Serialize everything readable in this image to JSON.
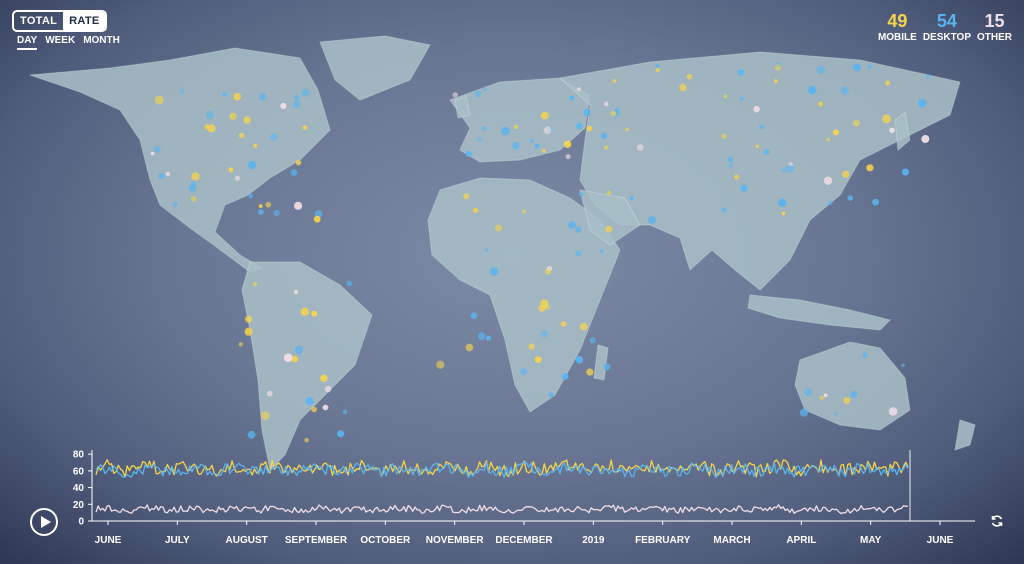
{
  "mode_toggle": {
    "total": "TOTAL",
    "rate": "RATE",
    "active": "rate"
  },
  "range_tabs": [
    "DAY",
    "WEEK",
    "MONTH"
  ],
  "range_active": "DAY",
  "stats": [
    {
      "value": "49",
      "label": "MOBILE",
      "color": "#f6d44b"
    },
    {
      "value": "54",
      "label": "DESKTOP",
      "color": "#5ab4f0"
    },
    {
      "value": "15",
      "label": "OTHER",
      "color": "#f1dfe7"
    }
  ],
  "icons": {
    "play": "play-icon",
    "refresh": "refresh-icon"
  },
  "colors": {
    "mobile": "#f6d44b",
    "desktop": "#5ab4f0",
    "other": "#f1dfe7",
    "land": "#a9bfc7",
    "ocean": "#6a7794"
  },
  "chart_data": {
    "type": "line",
    "x_tick_labels": [
      "JUNE",
      "JULY",
      "AUGUST",
      "SEPTEMBER",
      "OCTOBER",
      "NOVEMBER",
      "DECEMBER",
      "2019",
      "FEBRUARY",
      "MARCH",
      "APRIL",
      "MAY",
      "JUNE"
    ],
    "y_ticks": [
      0,
      20,
      40,
      60,
      80
    ],
    "ylim": [
      0,
      85
    ],
    "n_days": 365,
    "series": [
      {
        "key": "mobile",
        "color": "#f6d44b",
        "mean": 63,
        "amplitude": 8
      },
      {
        "key": "desktop",
        "color": "#5ab4f0",
        "mean": 61,
        "amplitude": 7
      },
      {
        "key": "other",
        "color": "#f1dfe7",
        "mean": 14,
        "amplitude": 4
      }
    ],
    "grid": false
  }
}
